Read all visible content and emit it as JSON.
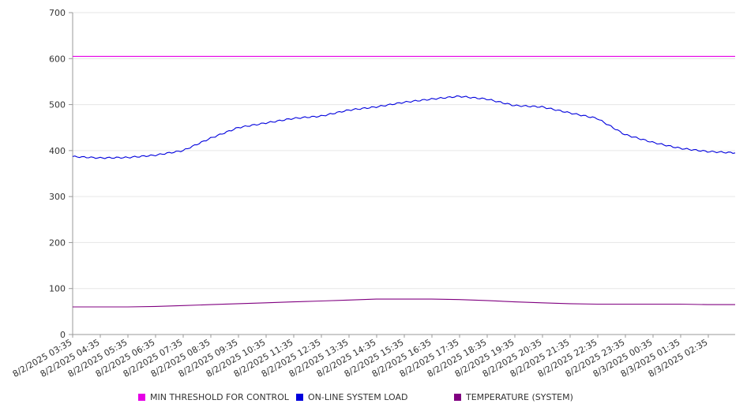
{
  "chart_data": {
    "type": "line",
    "y_range": [
      0,
      700
    ],
    "y_ticks": [
      "0",
      "100",
      "200",
      "300",
      "400",
      "500",
      "600",
      "700"
    ],
    "grid": true,
    "legend_position": "bottom",
    "x_tick_labels": [
      "8/2/2025 03:35",
      "8/2/2025 04:35",
      "8/2/2025 05:35",
      "8/2/2025 06:35",
      "8/2/2025 07:35",
      "8/2/2025 08:35",
      "8/2/2025 09:35",
      "8/2/2025 10:35",
      "8/2/2025 11:35",
      "8/2/2025 12:35",
      "8/2/2025 13:35",
      "8/2/2025 14:35",
      "8/2/2025 15:35",
      "8/2/2025 16:35",
      "8/2/2025 17:35",
      "8/2/2025 18:35",
      "8/2/2025 19:35",
      "8/2/2025 20:35",
      "8/2/2025 21:35",
      "8/2/2025 22:35",
      "8/2/2025 23:35",
      "8/3/2025 00:35",
      "8/3/2025 01:35",
      "8/3/2025 02:35"
    ],
    "x": [
      "8/2/2025 03:35",
      "8/2/2025 04:35",
      "8/2/2025 05:35",
      "8/2/2025 06:35",
      "8/2/2025 07:35",
      "8/2/2025 08:35",
      "8/2/2025 09:35",
      "8/2/2025 10:35",
      "8/2/2025 11:35",
      "8/2/2025 12:35",
      "8/2/2025 13:35",
      "8/2/2025 14:35",
      "8/2/2025 15:35",
      "8/2/2025 16:35",
      "8/2/2025 17:35",
      "8/2/2025 18:35",
      "8/2/2025 19:35",
      "8/2/2025 20:35",
      "8/2/2025 21:35",
      "8/2/2025 22:35",
      "8/2/2025 23:35",
      "8/3/2025 00:35",
      "8/3/2025 01:35",
      "8/3/2025 02:35",
      "8/3/2025 03:30"
    ],
    "series": [
      {
        "name": "MIN THRESHOLD FOR CONTROL",
        "color": "#e600e6",
        "values": [
          605,
          605,
          605,
          605,
          605,
          605,
          605,
          605,
          605,
          605,
          605,
          605,
          605,
          605,
          605,
          605,
          605,
          605,
          605,
          605,
          605,
          605,
          605,
          605,
          605
        ]
      },
      {
        "name": "ON-LINE SYSTEM LOAD",
        "color": "#0000dd",
        "values": [
          387,
          384,
          385,
          390,
          400,
          427,
          450,
          460,
          470,
          475,
          488,
          495,
          505,
          512,
          518,
          512,
          498,
          495,
          482,
          470,
          435,
          418,
          405,
          398,
          395
        ]
      },
      {
        "name": "TEMPERATURE (SYSTEM)",
        "color": "#800080",
        "values": [
          60,
          60,
          60,
          61,
          63,
          65,
          67,
          69,
          71,
          73,
          75,
          77,
          77,
          77,
          76,
          74,
          71,
          69,
          67,
          66,
          66,
          66,
          66,
          65,
          65
        ]
      }
    ]
  }
}
